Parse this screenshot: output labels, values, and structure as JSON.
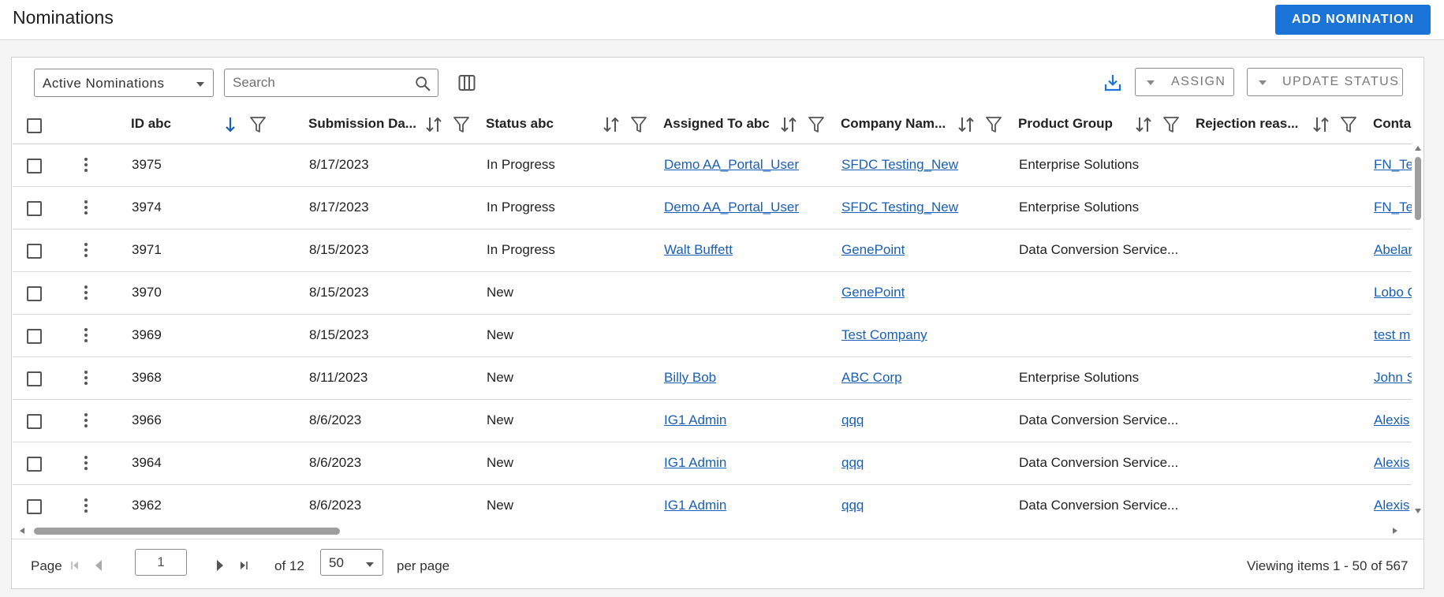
{
  "header": {
    "title": "Nominations",
    "add_button": "ADD NOMINATION"
  },
  "toolbar": {
    "view_selected": "Active Nominations",
    "search_placeholder": "Search",
    "assign_label": "ASSIGN",
    "update_status_label": "UPDATE STATUS"
  },
  "table": {
    "columns": [
      {
        "label": "ID abc",
        "sort": "desc"
      },
      {
        "label": "Submission Da...",
        "sort": "none"
      },
      {
        "label": "Status abc",
        "sort": "none"
      },
      {
        "label": "Assigned To abc",
        "sort": "none"
      },
      {
        "label": "Company Nam...",
        "sort": "none"
      },
      {
        "label": "Product Group",
        "sort": "none"
      },
      {
        "label": "Rejection reas...",
        "sort": "none"
      },
      {
        "label": "Conta"
      }
    ],
    "rows": [
      {
        "id": "3975",
        "date": "8/17/2023",
        "status": "In Progress",
        "assigned": "Demo AA_Portal_User",
        "company": "SFDC Testing_New",
        "product": "Enterprise Solutions",
        "rejection": "",
        "contact": "FN_Te"
      },
      {
        "id": "3974",
        "date": "8/17/2023",
        "status": "In Progress",
        "assigned": "Demo AA_Portal_User",
        "company": "SFDC Testing_New",
        "product": "Enterprise Solutions",
        "rejection": "",
        "contact": "FN_Te"
      },
      {
        "id": "3971",
        "date": "8/15/2023",
        "status": "In Progress",
        "assigned": "Walt Buffett",
        "company": "GenePoint",
        "product": "Data Conversion Service...",
        "rejection": "",
        "contact": "Abelar"
      },
      {
        "id": "3970",
        "date": "8/15/2023",
        "status": "New",
        "assigned": "",
        "company": "GenePoint",
        "product": "",
        "rejection": "",
        "contact": "Lobo C"
      },
      {
        "id": "3969",
        "date": "8/15/2023",
        "status": "New",
        "assigned": "",
        "company": "Test Company",
        "product": "",
        "rejection": "",
        "contact": "test m"
      },
      {
        "id": "3968",
        "date": "8/11/2023",
        "status": "New",
        "assigned": "Billy Bob",
        "company": "ABC Corp",
        "product": "Enterprise Solutions",
        "rejection": "",
        "contact": "John S"
      },
      {
        "id": "3966",
        "date": "8/6/2023",
        "status": "New",
        "assigned": "IG1 Admin",
        "company": "qqq",
        "product": "Data Conversion Service...",
        "rejection": "",
        "contact": "Alexis"
      },
      {
        "id": "3964",
        "date": "8/6/2023",
        "status": "New",
        "assigned": "IG1 Admin",
        "company": "qqq",
        "product": "Data Conversion Service...",
        "rejection": "",
        "contact": "Alexis"
      },
      {
        "id": "3962",
        "date": "8/6/2023",
        "status": "New",
        "assigned": "IG1 Admin",
        "company": "qqq",
        "product": "Data Conversion Service...",
        "rejection": "",
        "contact": "Alexis"
      }
    ]
  },
  "pager": {
    "page_label": "Page",
    "current_page": "1",
    "of_label": "of 12",
    "page_size": "50",
    "per_page_label": "per page",
    "viewing_label": "Viewing items",
    "viewing_range": "1 - 50 of 567"
  },
  "colors": {
    "accent": "#1a73d6",
    "link": "#1a5fb4",
    "sort_active": "#1a5fb4"
  }
}
